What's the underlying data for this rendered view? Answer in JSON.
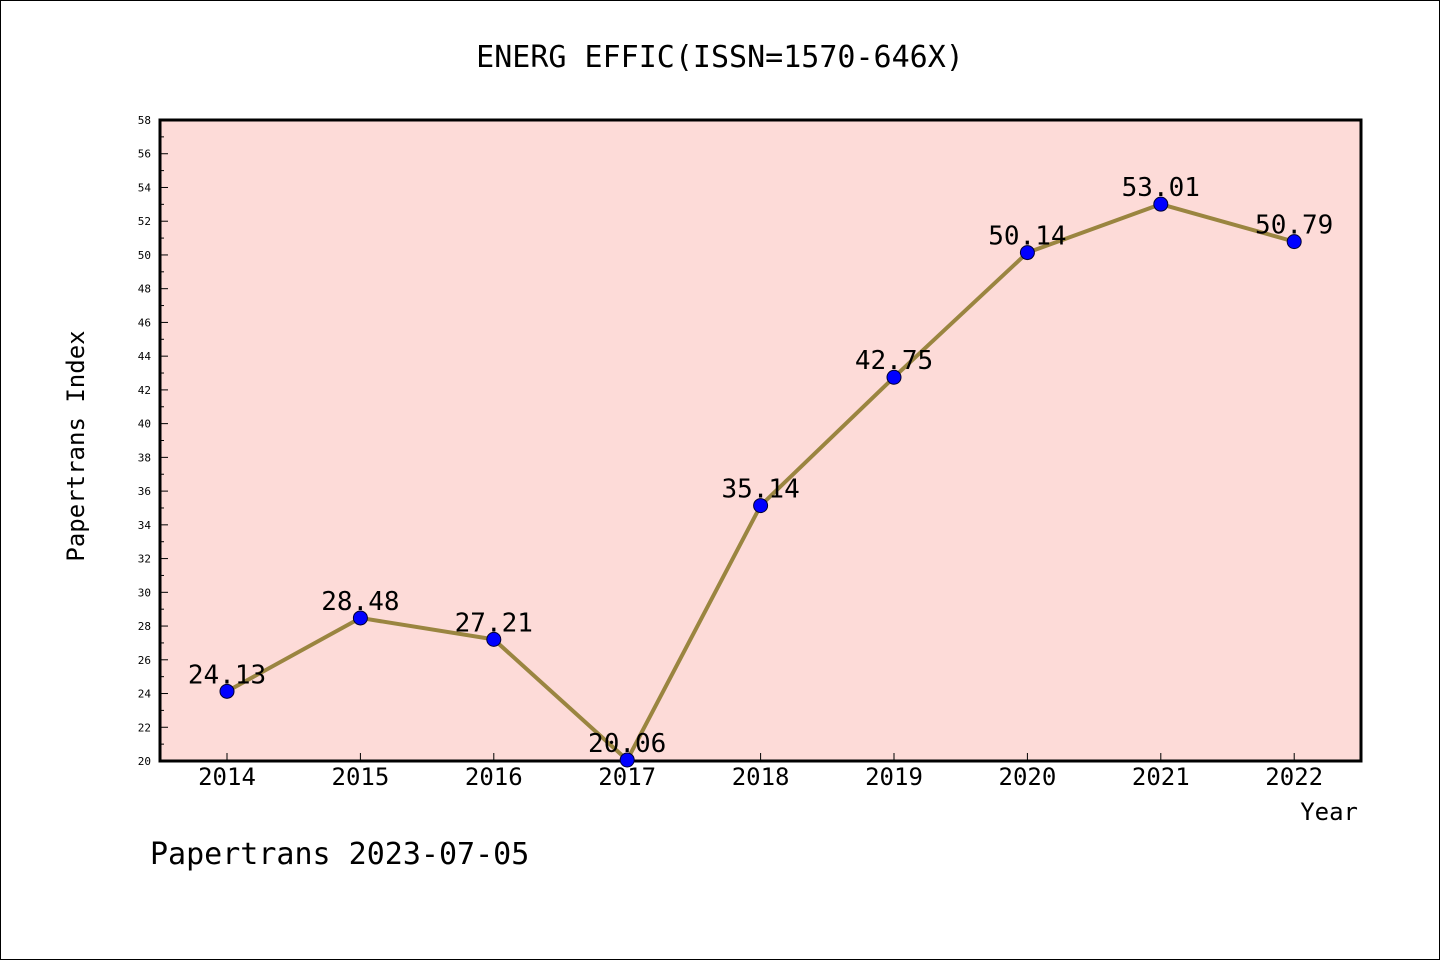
{
  "chart_data": {
    "type": "line",
    "title": "ENERG EFFIC(ISSN=1570-646X)",
    "xlabel": "Year",
    "ylabel": "Papertrans Index",
    "categories": [
      "2014",
      "2015",
      "2016",
      "2017",
      "2018",
      "2019",
      "2020",
      "2021",
      "2022"
    ],
    "series": [
      {
        "values": [
          24.13,
          28.48,
          27.21,
          20.06,
          35.14,
          42.75,
          50.14,
          53.01,
          50.79
        ],
        "labels": [
          "24.13",
          "28.48",
          "27.21",
          "20.06",
          "35.14",
          "42.75",
          "50.14",
          "53.01",
          "50.79"
        ]
      }
    ],
    "ylim": [
      20,
      58
    ],
    "yticks": [
      20,
      22,
      24,
      26,
      28,
      30,
      32,
      34,
      36,
      38,
      40,
      42,
      44,
      46,
      48,
      50,
      52,
      54,
      56,
      58
    ],
    "grid": false,
    "colors": {
      "plot_background": "#fddbd8",
      "line": "#9a8540",
      "marker": "#0000ff"
    }
  },
  "footer": "Papertrans 2023-07-05"
}
